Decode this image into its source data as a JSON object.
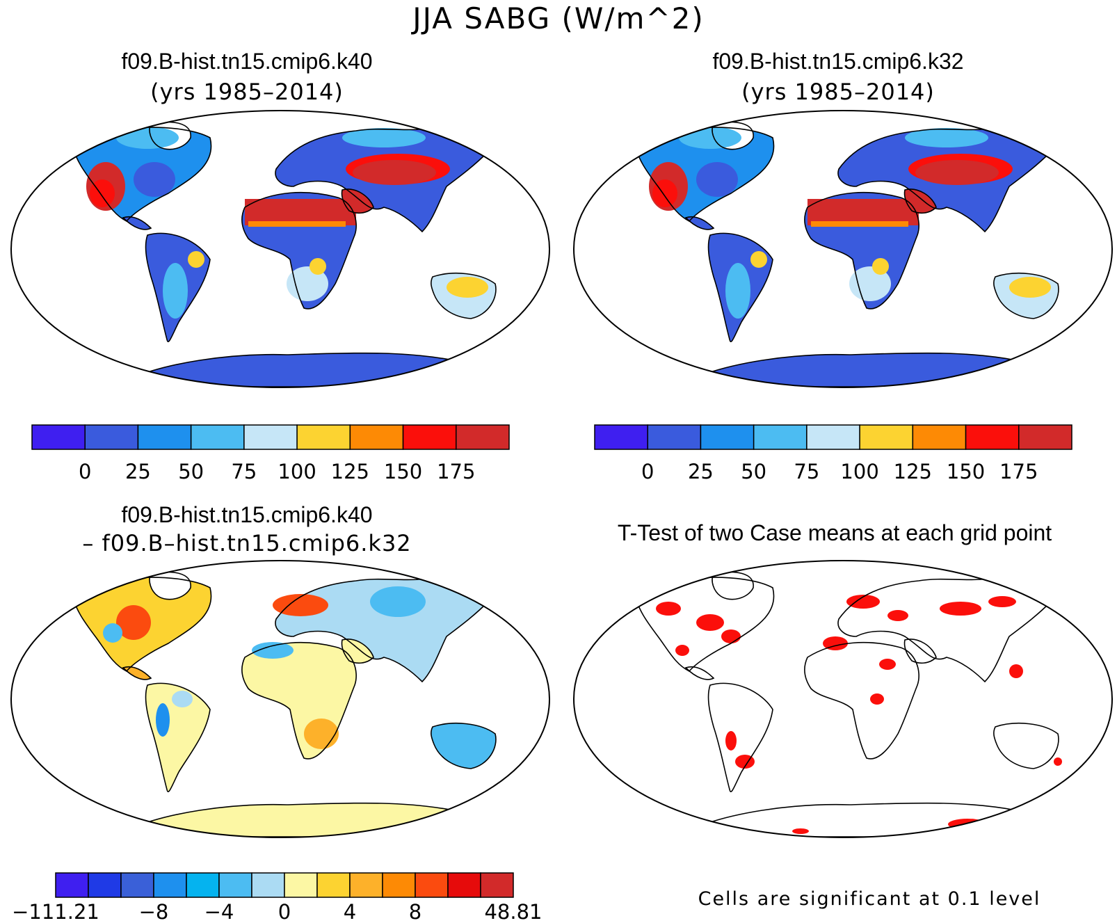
{
  "figure": {
    "title": "JJA SABG (W/m^2)"
  },
  "panels": {
    "case1": {
      "title": "f09.B-hist.tn15.cmip6.k40",
      "subtitle": "(yrs 1985–2014)"
    },
    "case2": {
      "title": "f09.B-hist.tn15.cmip6.k32",
      "subtitle": "(yrs 1985–2014)"
    },
    "diff": {
      "title": "f09.B-hist.tn15.cmip6.k40",
      "subtitle": "– f09.B–hist.tn15.cmip6.k32"
    },
    "ttest": {
      "title": "T-Test of two Case means at each grid point",
      "note": "Cells are significant at 0.1 level"
    }
  },
  "colorbars": {
    "absolute": {
      "colors": [
        "#3f1ff0",
        "#3a5bdd",
        "#1e90ee",
        "#4cbcf2",
        "#c6e6f7",
        "#fcd331",
        "#fd8a05",
        "#fb0f0b",
        "#d22a2a"
      ],
      "labels": [
        "0",
        "25",
        "50",
        "75",
        "100",
        "125",
        "150",
        "175"
      ]
    },
    "difference": {
      "colors": [
        "#3f1ff0",
        "#1f3ae6",
        "#3a60d8",
        "#1e90ee",
        "#05b3ef",
        "#4cbcf2",
        "#abdbf3",
        "#fcf7a4",
        "#fcd331",
        "#fdb12a",
        "#fd8a05",
        "#fb4b0f",
        "#e60b0b",
        "#d22a2a"
      ],
      "labels": [
        "−111.21",
        "−8",
        "−4",
        "0",
        "4",
        "8",
        "48.81"
      ]
    }
  },
  "ttest_map": {
    "significant_color": "#fb0f0b"
  }
}
